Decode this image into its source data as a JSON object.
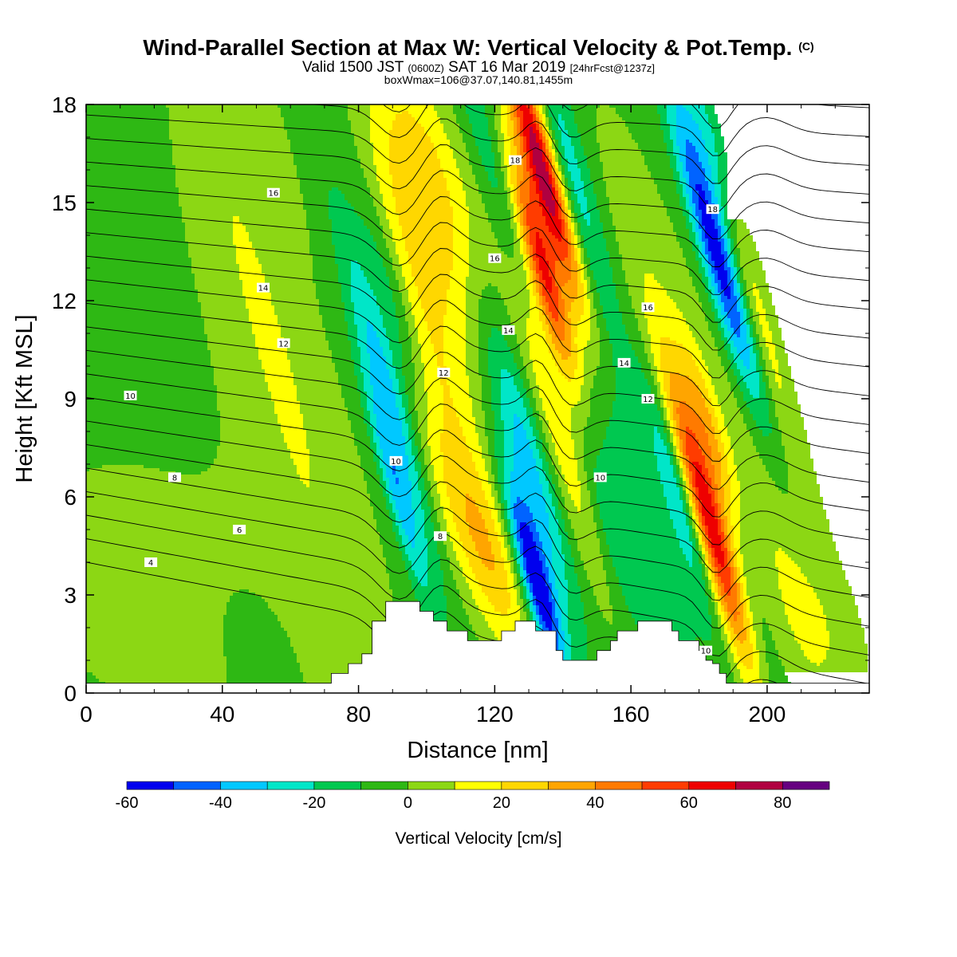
{
  "header": {
    "title": "Wind-Parallel Section at Max W: Vertical Velocity & Pot.Temp.",
    "title_mark": "(C)",
    "valid_pre": "Valid 1500 JST",
    "valid_utc": "(0600Z)",
    "valid_date": "SAT 16 Mar 2019",
    "valid_fcst": "[24hrFcst@1237z]",
    "box_info": "boxWmax=106@37.07,140.81,1455m"
  },
  "chart_data": {
    "type": "heatmap",
    "xlabel": "Distance [nm]",
    "ylabel": "Height [Kft MSL]",
    "xlim": [
      0,
      230
    ],
    "ylim": [
      0,
      18
    ],
    "x_ticks": [
      0,
      40,
      80,
      120,
      160,
      200
    ],
    "y_ticks": [
      0,
      3,
      6,
      9,
      12,
      15,
      18
    ],
    "colorbar": {
      "label": "Vertical Velocity [cm/s]",
      "levels": [
        -60,
        -50,
        -40,
        -30,
        -20,
        -10,
        0,
        10,
        20,
        30,
        40,
        50,
        60,
        70,
        80,
        90
      ],
      "tick_labels": [
        -60,
        -40,
        -20,
        0,
        20,
        40,
        60,
        80
      ],
      "colors": [
        "#0000ee",
        "#0063ff",
        "#00c8ff",
        "#00e6c8",
        "#00c850",
        "#2eb814",
        "#8cd714",
        "#ffff00",
        "#ffd700",
        "#ffa500",
        "#ff7a00",
        "#ff3c00",
        "#ee0000",
        "#b00040",
        "#660080"
      ]
    },
    "background_w": -5,
    "w_features": [
      {
        "x": 20,
        "y": 3.2,
        "sx": 28,
        "sy": 3.0,
        "w": 11
      },
      {
        "x": 58,
        "y": 9,
        "sx": 14,
        "sy": 9,
        "w": 11
      },
      {
        "x": 52,
        "y": 11.5,
        "sx": 4,
        "sy": 4,
        "w": 8
      },
      {
        "x": 55,
        "y": 17,
        "sx": 3,
        "sy": 2,
        "w": 8
      },
      {
        "x": 50,
        "y": 1.5,
        "sx": 7,
        "sy": 1.3,
        "w": -8
      },
      {
        "x": 100,
        "y": 15.5,
        "sx": 9,
        "sy": 3,
        "w": 32
      },
      {
        "x": 103,
        "y": 10,
        "sx": 7,
        "sy": 4,
        "w": 22
      },
      {
        "x": 106,
        "y": 6,
        "sx": 5,
        "sy": 2.5,
        "w": 13
      },
      {
        "x": 89,
        "y": 9,
        "sx": 3.5,
        "sy": 3.5,
        "w": -32
      },
      {
        "x": 91,
        "y": 6.2,
        "sx": 2.5,
        "sy": 2.5,
        "w": -28
      },
      {
        "x": 90,
        "y": 12,
        "sx": 4,
        "sy": 2.5,
        "w": -18
      },
      {
        "x": 119,
        "y": 4,
        "sx": 5,
        "sy": 2.2,
        "w": 26
      },
      {
        "x": 132,
        "y": 3.5,
        "sx": 3,
        "sy": 2.2,
        "w": -58
      },
      {
        "x": 130,
        "y": 7,
        "sx": 4,
        "sy": 3.2,
        "w": -30
      },
      {
        "x": 122,
        "y": 15,
        "sx": 4,
        "sy": 4,
        "w": -18
      },
      {
        "x": 134,
        "y": 16,
        "sx": 3.5,
        "sy": 3,
        "w": 85
      },
      {
        "x": 134,
        "y": 13,
        "sx": 3,
        "sy": 2.5,
        "w": 65
      },
      {
        "x": 137,
        "y": 9,
        "sx": 4,
        "sy": 4,
        "w": 30
      },
      {
        "x": 142,
        "y": 16,
        "sx": 4,
        "sy": 3,
        "w": -22
      },
      {
        "x": 152,
        "y": 5.5,
        "sx": 4,
        "sy": 2.5,
        "w": -14
      },
      {
        "x": 163,
        "y": 6,
        "sx": 6,
        "sy": 4,
        "w": -11
      },
      {
        "x": 174,
        "y": 6,
        "sx": 3,
        "sy": 2.5,
        "w": -25
      },
      {
        "x": 184,
        "y": 5,
        "sx": 3.5,
        "sy": 3.2,
        "w": 80
      },
      {
        "x": 183,
        "y": 8,
        "sx": 3,
        "sy": 2,
        "w": 30
      },
      {
        "x": 185,
        "y": 13.5,
        "sx": 3.5,
        "sy": 3.5,
        "w": -55
      },
      {
        "x": 183,
        "y": 17,
        "sx": 3,
        "sy": 2,
        "w": -30
      },
      {
        "x": 194,
        "y": 13,
        "sx": 3,
        "sy": 5,
        "w": 20
      },
      {
        "x": 192,
        "y": 3,
        "sx": 4,
        "sy": 3,
        "w": -14
      },
      {
        "x": 200,
        "y": 6,
        "sx": 7,
        "sy": 5,
        "w": 12
      },
      {
        "x": 165,
        "y": 13,
        "sx": 7,
        "sy": 4,
        "w": 11
      },
      {
        "x": 215,
        "y": 2,
        "sx": 10,
        "sy": 2,
        "w": 10
      }
    ],
    "terrain": {
      "x": [
        0,
        70,
        72,
        75,
        77,
        79,
        81,
        84,
        86,
        88,
        92,
        94,
        98,
        100,
        102,
        104,
        106,
        108,
        112,
        116,
        120,
        122,
        124,
        126,
        130,
        132,
        134,
        138,
        140,
        144,
        148,
        150,
        154,
        156,
        160,
        162,
        164,
        168,
        172,
        174,
        178,
        180,
        182,
        184,
        186,
        188,
        190,
        230
      ],
      "y": [
        0.3,
        0.3,
        0.6,
        0.6,
        0.9,
        0.9,
        1.2,
        2.2,
        2.2,
        2.8,
        2.8,
        2.8,
        2.5,
        2.5,
        2.2,
        2.2,
        1.9,
        1.9,
        1.6,
        1.6,
        1.6,
        1.9,
        1.9,
        2.2,
        2.2,
        1.9,
        1.9,
        1.3,
        1.0,
        1.0,
        1.0,
        1.3,
        1.6,
        1.9,
        1.9,
        2.2,
        2.2,
        2.2,
        1.9,
        1.6,
        1.6,
        1.3,
        1.0,
        0.9,
        0.6,
        0.3,
        0.3,
        0.3
      ]
    },
    "isentrope_labels": [
      {
        "text": "18",
        "x": 126,
        "y": 16.3
      },
      {
        "text": "16",
        "x": 55,
        "y": 15.3
      },
      {
        "text": "18",
        "x": 184,
        "y": 14.8
      },
      {
        "text": "16",
        "x": 120,
        "y": 13.3
      },
      {
        "text": "16",
        "x": 165,
        "y": 11.8
      },
      {
        "text": "14",
        "x": 52,
        "y": 12.4
      },
      {
        "text": "14",
        "x": 124,
        "y": 11.1
      },
      {
        "text": "14",
        "x": 158,
        "y": 10.1
      },
      {
        "text": "12",
        "x": 58,
        "y": 10.7
      },
      {
        "text": "12",
        "x": 105,
        "y": 9.8
      },
      {
        "text": "12",
        "x": 165,
        "y": 9.0
      },
      {
        "text": "10",
        "x": 13,
        "y": 9.1
      },
      {
        "text": "10",
        "x": 91,
        "y": 7.1
      },
      {
        "text": "10",
        "x": 151,
        "y": 6.6
      },
      {
        "text": "10",
        "x": 182,
        "y": 1.3
      },
      {
        "text": "8",
        "x": 26,
        "y": 6.6
      },
      {
        "text": "8",
        "x": 104,
        "y": 4.8
      },
      {
        "text": "6",
        "x": 45,
        "y": 5.0
      },
      {
        "text": "4",
        "x": 19,
        "y": 4.0
      }
    ]
  }
}
